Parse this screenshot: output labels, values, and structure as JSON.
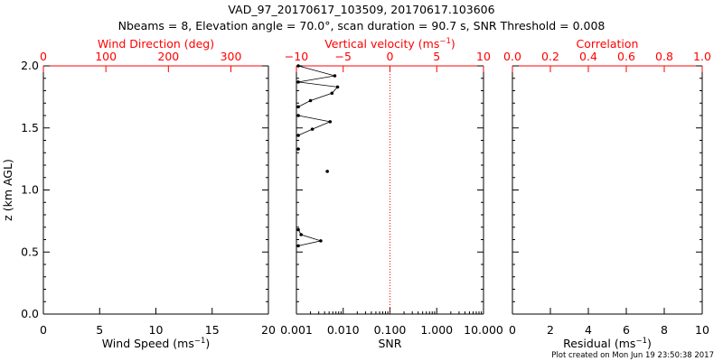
{
  "header": {
    "title": "VAD_97_20170617_103509, 20170617.103606",
    "subtitle": "Nbeams = 8, Elevation angle = 70.0°, scan duration = 90.7 s, SNR Threshold = 0.008"
  },
  "footer": {
    "created": "Plot created on Mon Jun 19 23:50:38 2017"
  },
  "colors": {
    "axis": "#000000",
    "top_axis": "#ff0000",
    "zero_line": "#ff0000",
    "data": "#000000",
    "background": "#ffffff"
  },
  "chart_data": [
    {
      "type": "line",
      "ylabel": "z (km AGL)",
      "ylim": [
        0,
        2
      ],
      "yticks": [
        "0.0",
        "0.5",
        "1.0",
        "1.5",
        "2.0"
      ],
      "bottom_axis": {
        "label": "Wind Speed (ms",
        "label_sup": "−1",
        "label_end": ")",
        "lim": [
          0,
          20
        ],
        "ticks": [
          "0",
          "5",
          "10",
          "15",
          "20"
        ]
      },
      "top_axis": {
        "label": "Wind Direction (deg)",
        "lim": [
          0,
          360
        ],
        "ticks": [
          "0",
          "100",
          "200",
          "300"
        ],
        "tick_values": [
          0,
          100,
          200,
          300
        ]
      },
      "series": []
    },
    {
      "type": "line",
      "ylim": [
        0,
        2
      ],
      "bottom_axis": {
        "label": "SNR",
        "scale": "log",
        "lim": [
          0.001,
          10
        ],
        "ticks": [
          "0.001",
          "0.010",
          "0.100",
          "1.000",
          "10.000"
        ],
        "tick_values": [
          0.001,
          0.01,
          0.1,
          1,
          10
        ]
      },
      "top_axis": {
        "label": "Vertical velocity (ms",
        "label_sup": "−1",
        "label_end": ")",
        "lim": [
          -10,
          10
        ],
        "ticks": [
          "−10",
          "−5",
          "0",
          "5",
          "10"
        ],
        "tick_values": [
          -10,
          -5,
          0,
          5,
          10
        ]
      },
      "reference_line": {
        "axis": "top",
        "value": 0,
        "style": "dotted"
      },
      "series": [
        {
          "axis": "top",
          "points": [
            [
              -9.8,
              2.0
            ],
            [
              -5.9,
              1.92
            ],
            [
              -9.8,
              1.87
            ],
            [
              -5.6,
              1.83
            ],
            [
              -6.2,
              1.78
            ],
            [
              -8.5,
              1.72
            ],
            [
              -9.8,
              1.67
            ]
          ]
        },
        {
          "axis": "top",
          "points": [
            [
              -9.8,
              1.6
            ],
            [
              -6.4,
              1.55
            ],
            [
              -8.3,
              1.49
            ],
            [
              -9.8,
              1.44
            ]
          ]
        },
        {
          "axis": "top",
          "points": [
            [
              -9.8,
              1.33
            ]
          ]
        },
        {
          "axis": "top",
          "points": [
            [
              -6.7,
              1.15
            ]
          ]
        },
        {
          "axis": "top",
          "points": [
            [
              -9.8,
              0.68
            ],
            [
              -9.5,
              0.64
            ],
            [
              -7.4,
              0.59
            ],
            [
              -9.8,
              0.55
            ]
          ]
        }
      ]
    },
    {
      "type": "line",
      "ylim": [
        0,
        2
      ],
      "bottom_axis": {
        "label": "Residual (ms",
        "label_sup": "−1",
        "label_end": ")",
        "lim": [
          0,
          10
        ],
        "ticks": [
          "0",
          "2",
          "4",
          "6",
          "8",
          "10"
        ],
        "tick_values": [
          0,
          2,
          4,
          6,
          8,
          10
        ]
      },
      "top_axis": {
        "label": "Correlation",
        "lim": [
          0,
          1
        ],
        "ticks": [
          "0.0",
          "0.2",
          "0.4",
          "0.6",
          "0.8",
          "1.0"
        ],
        "tick_values": [
          0,
          0.2,
          0.4,
          0.6,
          0.8,
          1.0
        ]
      },
      "series": []
    }
  ]
}
